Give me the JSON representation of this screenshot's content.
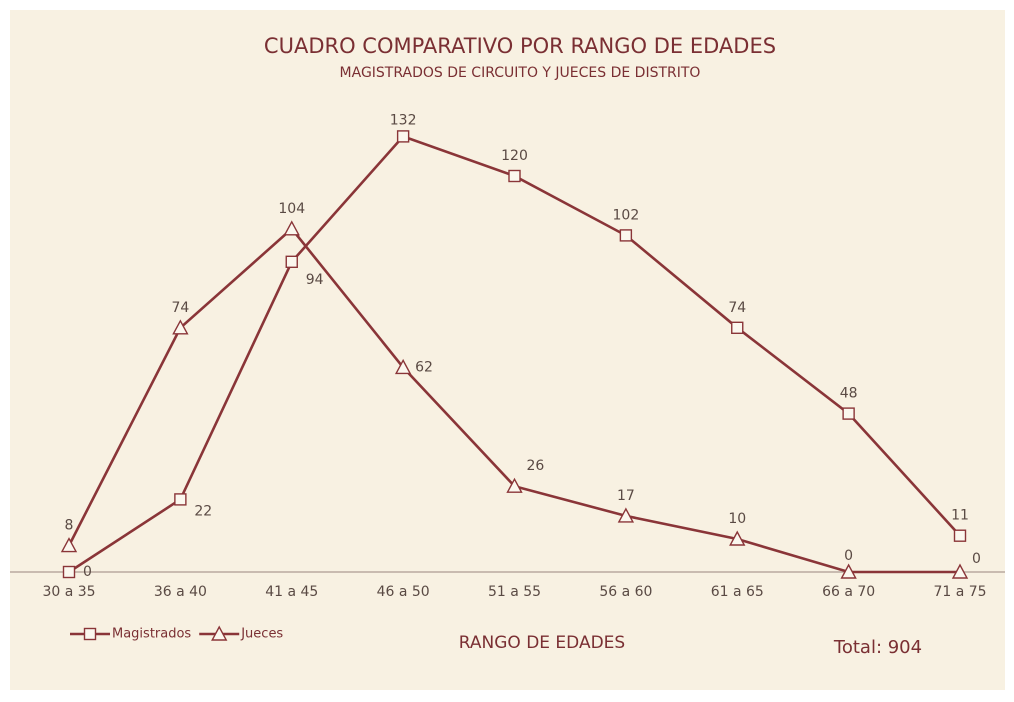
{
  "chart_data": {
    "type": "line",
    "title": "CUADRO COMPARATIVO POR RANGO DE EDADES",
    "subtitle": "MAGISTRADOS DE CIRCUITO Y JUECES DE DISTRITO",
    "xlabel": "RANGO DE EDADES",
    "annotation": "Total: 904",
    "categories": [
      "30 a 35",
      "36 a 40",
      "41 a 45",
      "46 a 50",
      "51 a 55",
      "56 a 60",
      "61 a 65",
      "66 a 70",
      "71 a 75"
    ],
    "series": [
      {
        "name": "Magistrados",
        "color": "#8a3538",
        "marker": "square",
        "values": [
          0,
          22,
          94,
          132,
          120,
          102,
          74,
          48,
          11
        ]
      },
      {
        "name": "Jueces",
        "color": "#8a3538",
        "marker": "triangle",
        "values": [
          8,
          74,
          104,
          62,
          26,
          17,
          10,
          0,
          0
        ]
      }
    ],
    "ylim": [
      0,
      140
    ],
    "legend": "lower left"
  }
}
